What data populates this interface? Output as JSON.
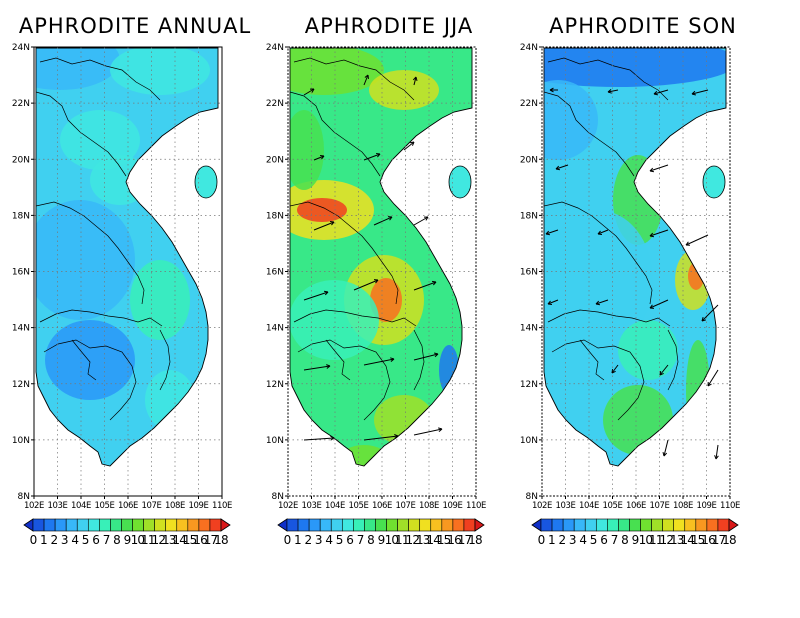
{
  "panels": [
    {
      "title": "APHRODITE ANNUAL",
      "vectors": false
    },
    {
      "title": "APHRODITE JJA",
      "vectors": true
    },
    {
      "title": "APHRODITE SON",
      "vectors": true
    }
  ],
  "axes": {
    "lat_labels": [
      "24N",
      "22N",
      "20N",
      "18N",
      "16N",
      "14N",
      "12N",
      "10N",
      "8N"
    ],
    "lon_labels": [
      "102E",
      "103E",
      "104E",
      "105E",
      "106E",
      "107E",
      "108E",
      "109E",
      "110E"
    ],
    "lat_range": [
      8,
      24
    ],
    "lon_range": [
      102,
      110
    ]
  },
  "colorbar": {
    "labels": [
      "0",
      "1",
      "2",
      "3",
      "4",
      "5",
      "6",
      "7",
      "8",
      "9",
      "10",
      "11",
      "12",
      "13",
      "14",
      "15",
      "16",
      "17",
      "18"
    ],
    "colors": [
      "#1030c8",
      "#1856e0",
      "#1e78f0",
      "#2a98f8",
      "#38b8f8",
      "#40d0f0",
      "#40e8e0",
      "#38f0b8",
      "#38e888",
      "#48e050",
      "#70e030",
      "#a0e028",
      "#d0e020",
      "#f0e020",
      "#f8c020",
      "#f89820",
      "#f87020",
      "#f04020",
      "#d81818"
    ]
  }
}
